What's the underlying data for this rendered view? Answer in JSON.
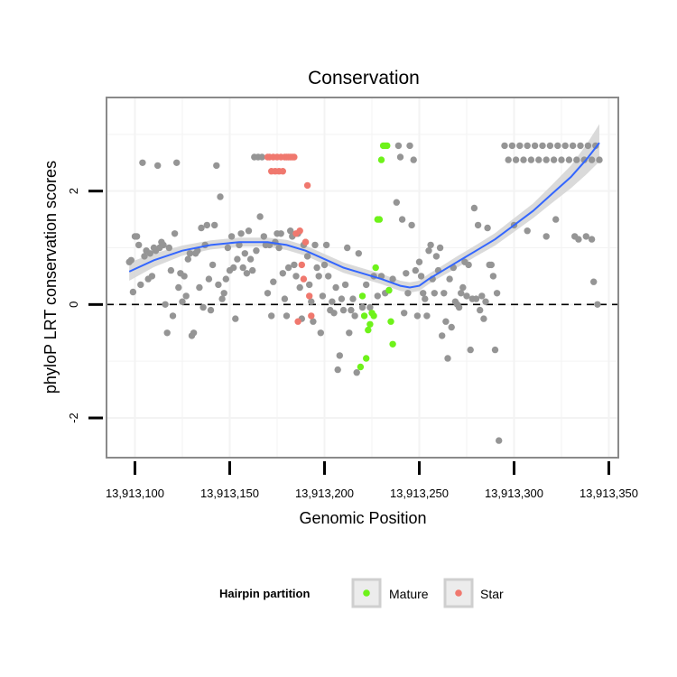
{
  "chart_data": {
    "type": "scatter",
    "title": "Conservation",
    "xlabel": "Genomic Position",
    "ylabel": "phyloP LRT conservation scores",
    "xlim": [
      13913085,
      13913355
    ],
    "ylim": [
      -2.7,
      3.65
    ],
    "xticks": [
      13913100,
      13913150,
      13913200,
      13913250,
      13913300,
      13913350
    ],
    "xtick_labels": [
      "13,913,100",
      "13,913,150",
      "13,913,200",
      "13,913,250",
      "13,913,300",
      "13,913,350"
    ],
    "yticks": [
      -2,
      0,
      2
    ],
    "ytick_labels": [
      "-2",
      "0",
      "2"
    ],
    "reference_line": {
      "y": 0,
      "style": "dashed"
    },
    "colors": {
      "other": "#959595",
      "mature": "#6ef21a",
      "star": "#f0786e",
      "smooth": "#3366ff",
      "band": "#d4d4d4",
      "grid": "#f3f3f3",
      "frame": "#8a8a8a"
    },
    "legend": {
      "title": "Hairpin partition",
      "position": "bottom",
      "items": [
        {
          "label": "Mature",
          "key": "mature"
        },
        {
          "label": "Star",
          "key": "star"
        }
      ]
    },
    "series": [
      {
        "name": "Other",
        "key": "other",
        "points": [
          [
            13913097,
            0.75
          ],
          [
            13913098,
            0.78
          ],
          [
            13913099,
            0.22
          ],
          [
            13913100,
            1.2
          ],
          [
            13913101,
            1.2
          ],
          [
            13913102,
            1.05
          ],
          [
            13913103,
            0.35
          ],
          [
            13913104,
            2.5
          ],
          [
            13913105,
            0.85
          ],
          [
            13913106,
            0.95
          ],
          [
            13913107,
            0.45
          ],
          [
            13913108,
            0.9
          ],
          [
            13913109,
            0.5
          ],
          [
            13913110,
            1.0
          ],
          [
            13913111,
            0.95
          ],
          [
            13913112,
            2.45
          ],
          [
            13913113,
            1.0
          ],
          [
            13913114,
            1.1
          ],
          [
            13913115,
            1.05
          ],
          [
            13913116,
            0.0
          ],
          [
            13913117,
            -0.5
          ],
          [
            13913118,
            1.0
          ],
          [
            13913119,
            0.6
          ],
          [
            13913120,
            -0.2
          ],
          [
            13913121,
            1.25
          ],
          [
            13913122,
            2.5
          ],
          [
            13913123,
            0.3
          ],
          [
            13913124,
            0.55
          ],
          [
            13913125,
            0.05
          ],
          [
            13913126,
            0.5
          ],
          [
            13913127,
            0.15
          ],
          [
            13913128,
            0.8
          ],
          [
            13913129,
            0.9
          ],
          [
            13913130,
            -0.55
          ],
          [
            13913131,
            -0.5
          ],
          [
            13913132,
            0.9
          ],
          [
            13913133,
            0.95
          ],
          [
            13913134,
            0.3
          ],
          [
            13913135,
            1.35
          ],
          [
            13913136,
            -0.05
          ],
          [
            13913137,
            1.05
          ],
          [
            13913138,
            1.4
          ],
          [
            13913139,
            0.45
          ],
          [
            13913140,
            -0.1
          ],
          [
            13913141,
            0.7
          ],
          [
            13913142,
            1.4
          ],
          [
            13913143,
            2.45
          ],
          [
            13913144,
            0.35
          ],
          [
            13913145,
            1.9
          ],
          [
            13913146,
            0.1
          ],
          [
            13913147,
            0.2
          ],
          [
            13913148,
            0.45
          ],
          [
            13913149,
            1.0
          ],
          [
            13913150,
            0.6
          ],
          [
            13913151,
            1.2
          ],
          [
            13913152,
            0.65
          ],
          [
            13913153,
            -0.25
          ],
          [
            13913154,
            0.8
          ],
          [
            13913155,
            1.05
          ],
          [
            13913156,
            1.25
          ],
          [
            13913157,
            0.65
          ],
          [
            13913158,
            0.9
          ],
          [
            13913159,
            0.55
          ],
          [
            13913160,
            1.3
          ],
          [
            13913161,
            0.8
          ],
          [
            13913162,
            0.6
          ],
          [
            13913163,
            2.6
          ],
          [
            13913164,
            0.95
          ],
          [
            13913165,
            2.6
          ],
          [
            13913166,
            1.55
          ],
          [
            13913167,
            2.6
          ],
          [
            13913168,
            1.2
          ],
          [
            13913169,
            1.05
          ],
          [
            13913170,
            0.2
          ],
          [
            13913171,
            1.05
          ],
          [
            13913172,
            -0.2
          ],
          [
            13913173,
            0.4
          ],
          [
            13913174,
            1.1
          ],
          [
            13913175,
            1.25
          ],
          [
            13913176,
            1.0
          ],
          [
            13913177,
            1.25
          ],
          [
            13913178,
            0.55
          ],
          [
            13913179,
            0.1
          ],
          [
            13913180,
            -0.2
          ],
          [
            13913181,
            0.65
          ],
          [
            13913182,
            1.3
          ],
          [
            13913183,
            1.2
          ],
          [
            13913184,
            0.7
          ],
          [
            13913185,
            0.5
          ],
          [
            13913186,
            1.25
          ],
          [
            13913187,
            0.3
          ],
          [
            13913188,
            -0.25
          ],
          [
            13913189,
            1.05
          ],
          [
            13913190,
            1.1
          ],
          [
            13913191,
            0.85
          ],
          [
            13913192,
            0.35
          ],
          [
            13913193,
            0.05
          ],
          [
            13913194,
            -0.3
          ],
          [
            13913195,
            1.05
          ],
          [
            13913196,
            0.65
          ],
          [
            13913197,
            0.5
          ],
          [
            13913198,
            -0.5
          ],
          [
            13913199,
            0.15
          ],
          [
            13913200,
            0.7
          ],
          [
            13913201,
            1.05
          ],
          [
            13913202,
            0.5
          ],
          [
            13913203,
            -0.1
          ],
          [
            13913204,
            0.05
          ],
          [
            13913205,
            -0.15
          ],
          [
            13913206,
            0.3
          ],
          [
            13913207,
            -1.15
          ],
          [
            13913208,
            -0.9
          ],
          [
            13913209,
            0.1
          ],
          [
            13913210,
            -0.1
          ],
          [
            13913211,
            0.35
          ],
          [
            13913212,
            1.0
          ],
          [
            13913213,
            -0.5
          ],
          [
            13913214,
            -0.1
          ],
          [
            13913215,
            0.1
          ],
          [
            13913216,
            -0.2
          ],
          [
            13913217,
            -1.2
          ],
          [
            13913218,
            0.9
          ],
          [
            13913220,
            -0.05
          ],
          [
            13913222,
            0.35
          ],
          [
            13913224,
            -0.05
          ],
          [
            13913226,
            0.5
          ],
          [
            13913228,
            0.15
          ],
          [
            13913230,
            0.5
          ],
          [
            13913232,
            0.2
          ],
          [
            13913234,
            0.25
          ],
          [
            13913236,
            0.45
          ],
          [
            13913238,
            1.8
          ],
          [
            13913239,
            2.8
          ],
          [
            13913240,
            2.6
          ],
          [
            13913241,
            1.5
          ],
          [
            13913242,
            -0.15
          ],
          [
            13913243,
            0.55
          ],
          [
            13913244,
            0.2
          ],
          [
            13913245,
            2.8
          ],
          [
            13913246,
            1.4
          ],
          [
            13913247,
            2.55
          ],
          [
            13913248,
            0.6
          ],
          [
            13913249,
            -0.2
          ],
          [
            13913250,
            0.75
          ],
          [
            13913251,
            0.5
          ],
          [
            13913252,
            0.2
          ],
          [
            13913253,
            0.1
          ],
          [
            13913254,
            -0.2
          ],
          [
            13913255,
            0.95
          ],
          [
            13913256,
            1.05
          ],
          [
            13913257,
            0.45
          ],
          [
            13913258,
            0.2
          ],
          [
            13913259,
            0.85
          ],
          [
            13913260,
            0.6
          ],
          [
            13913261,
            1.0
          ],
          [
            13913262,
            -0.55
          ],
          [
            13913263,
            0.2
          ],
          [
            13913264,
            -0.3
          ],
          [
            13913265,
            -0.95
          ],
          [
            13913266,
            0.45
          ],
          [
            13913267,
            -0.4
          ],
          [
            13913268,
            0.65
          ],
          [
            13913269,
            0.05
          ],
          [
            13913270,
            0.0
          ],
          [
            13913271,
            -0.05
          ],
          [
            13913272,
            0.2
          ],
          [
            13913273,
            0.3
          ],
          [
            13913274,
            0.75
          ],
          [
            13913275,
            0.15
          ],
          [
            13913276,
            0.7
          ],
          [
            13913277,
            -0.8
          ],
          [
            13913278,
            0.1
          ],
          [
            13913279,
            1.7
          ],
          [
            13913280,
            0.1
          ],
          [
            13913281,
            1.4
          ],
          [
            13913282,
            -0.1
          ],
          [
            13913283,
            0.15
          ],
          [
            13913284,
            -0.25
          ],
          [
            13913285,
            0.05
          ],
          [
            13913286,
            1.35
          ],
          [
            13913287,
            0.7
          ],
          [
            13913288,
            0.7
          ],
          [
            13913289,
            0.5
          ],
          [
            13913290,
            -0.8
          ],
          [
            13913291,
            0.2
          ],
          [
            13913292,
            -2.4
          ],
          [
            13913295,
            2.8
          ],
          [
            13913297,
            2.55
          ],
          [
            13913299,
            2.8
          ],
          [
            13913301,
            2.55
          ],
          [
            13913303,
            2.8
          ],
          [
            13913305,
            2.55
          ],
          [
            13913307,
            2.8
          ],
          [
            13913309,
            2.55
          ],
          [
            13913311,
            2.8
          ],
          [
            13913313,
            2.55
          ],
          [
            13913315,
            2.8
          ],
          [
            13913317,
            2.55
          ],
          [
            13913319,
            2.8
          ],
          [
            13913321,
            2.55
          ],
          [
            13913323,
            2.8
          ],
          [
            13913325,
            2.55
          ],
          [
            13913327,
            2.8
          ],
          [
            13913329,
            2.55
          ],
          [
            13913331,
            2.8
          ],
          [
            13913333,
            2.55
          ],
          [
            13913335,
            2.8
          ],
          [
            13913337,
            2.55
          ],
          [
            13913339,
            2.8
          ],
          [
            13913341,
            2.55
          ],
          [
            13913343,
            2.8
          ],
          [
            13913345,
            2.55
          ],
          [
            13913300,
            1.4
          ],
          [
            13913307,
            1.3
          ],
          [
            13913317,
            1.2
          ],
          [
            13913322,
            1.5
          ],
          [
            13913332,
            1.2
          ],
          [
            13913334,
            1.15
          ],
          [
            13913338,
            1.2
          ],
          [
            13913341,
            1.15
          ],
          [
            13913342,
            0.4
          ],
          [
            13913344,
            0.0
          ]
        ]
      },
      {
        "name": "Mature",
        "key": "mature",
        "points": [
          [
            13913219,
            -1.1
          ],
          [
            13913220,
            0.15
          ],
          [
            13913221,
            -0.2
          ],
          [
            13913222,
            -0.95
          ],
          [
            13913223,
            -0.45
          ],
          [
            13913224,
            -0.35
          ],
          [
            13913225,
            -0.15
          ],
          [
            13913226,
            -0.2
          ],
          [
            13913227,
            0.65
          ],
          [
            13913228,
            1.5
          ],
          [
            13913229,
            1.5
          ],
          [
            13913230,
            2.55
          ],
          [
            13913231,
            2.8
          ],
          [
            13913232,
            2.8
          ],
          [
            13913233,
            2.8
          ],
          [
            13913234,
            0.25
          ],
          [
            13913235,
            -0.3
          ],
          [
            13913236,
            -0.7
          ]
        ]
      },
      {
        "name": "Star",
        "key": "star",
        "points": [
          [
            13913170,
            2.6
          ],
          [
            13913171,
            2.6
          ],
          [
            13913172,
            2.35
          ],
          [
            13913173,
            2.6
          ],
          [
            13913174,
            2.35
          ],
          [
            13913175,
            2.6
          ],
          [
            13913176,
            2.35
          ],
          [
            13913177,
            2.6
          ],
          [
            13913178,
            2.35
          ],
          [
            13913179,
            2.6
          ],
          [
            13913180,
            2.6
          ],
          [
            13913181,
            2.6
          ],
          [
            13913182,
            2.6
          ],
          [
            13913183,
            2.6
          ],
          [
            13913184,
            2.6
          ],
          [
            13913185,
            1.25
          ],
          [
            13913186,
            -0.3
          ],
          [
            13913187,
            1.3
          ],
          [
            13913188,
            0.7
          ],
          [
            13913189,
            0.45
          ],
          [
            13913190,
            1.1
          ],
          [
            13913191,
            2.1
          ],
          [
            13913192,
            0.15
          ],
          [
            13913193,
            -0.2
          ]
        ]
      }
    ],
    "smooth_line": {
      "x": [
        13913097,
        13913110,
        13913125,
        13913140,
        13913155,
        13913170,
        13913180,
        13913190,
        13913200,
        13913210,
        13913220,
        13913230,
        13913240,
        13913245,
        13913250,
        13913255,
        13913260,
        13913270,
        13913280,
        13913290,
        13913300,
        13913310,
        13913320,
        13913330,
        13913338,
        13913345
      ],
      "y": [
        0.58,
        0.78,
        0.95,
        1.05,
        1.1,
        1.1,
        1.05,
        0.95,
        0.8,
        0.65,
        0.55,
        0.45,
        0.33,
        0.3,
        0.33,
        0.45,
        0.55,
        0.75,
        0.95,
        1.15,
        1.4,
        1.65,
        1.95,
        2.25,
        2.55,
        2.85
      ],
      "band_lower": [
        0.42,
        0.66,
        0.86,
        0.97,
        1.02,
        1.02,
        0.96,
        0.86,
        0.71,
        0.56,
        0.46,
        0.36,
        0.24,
        0.21,
        0.24,
        0.36,
        0.46,
        0.65,
        0.85,
        1.04,
        1.28,
        1.52,
        1.79,
        2.05,
        2.29,
        2.52
      ],
      "band_upper": [
        0.74,
        0.9,
        1.04,
        1.13,
        1.18,
        1.18,
        1.14,
        1.04,
        0.89,
        0.74,
        0.64,
        0.54,
        0.42,
        0.39,
        0.42,
        0.54,
        0.64,
        0.85,
        1.05,
        1.26,
        1.52,
        1.78,
        2.11,
        2.45,
        2.81,
        3.18
      ]
    }
  }
}
